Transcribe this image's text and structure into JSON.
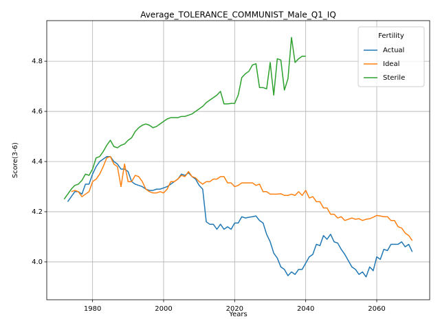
{
  "chart_data": {
    "type": "line",
    "title": "Average_TOLERANCE_COMMUNIST_Male_Q1_IQ",
    "xlabel": "Years",
    "ylabel": "Score(3-6)",
    "legend_title": "Fertility",
    "legend": "upper right",
    "grid": true,
    "x": [
      1972,
      1973,
      1974,
      1975,
      1976,
      1977,
      1978,
      1979,
      1980,
      1981,
      1982,
      1983,
      1984,
      1985,
      1986,
      1987,
      1988,
      1989,
      1990,
      1991,
      1992,
      1993,
      1994,
      1995,
      1996,
      1997,
      1998,
      1999,
      2000,
      2001,
      2002,
      2003,
      2004,
      2005,
      2006,
      2007,
      2008,
      2009,
      2010,
      2011,
      2012,
      2013,
      2014,
      2015,
      2016,
      2017,
      2018,
      2019,
      2020,
      2021,
      2022,
      2023,
      2024,
      2025,
      2026,
      2027,
      2028,
      2029,
      2030,
      2031,
      2032,
      2033,
      2034,
      2035,
      2036,
      2037,
      2038,
      2039,
      2040,
      2041,
      2042,
      2043,
      2044,
      2045,
      2046,
      2047,
      2048,
      2049,
      2050,
      2051,
      2052,
      2053,
      2054,
      2055,
      2056,
      2057,
      2058,
      2059,
      2060,
      2061,
      2062,
      2063,
      2064,
      2065,
      2066,
      2067,
      2068,
      2069,
      2070
    ],
    "series": [
      {
        "name": "Actual",
        "color": "#1f77b4",
        "values": [
          null,
          4.24,
          4.26,
          4.28,
          4.28,
          4.27,
          4.31,
          4.31,
          4.35,
          4.38,
          4.4,
          4.41,
          4.42,
          4.42,
          4.4,
          4.39,
          4.37,
          4.37,
          4.36,
          4.32,
          4.31,
          4.305,
          4.3,
          4.29,
          4.285,
          4.285,
          4.29,
          4.29,
          4.295,
          4.3,
          4.31,
          4.32,
          4.33,
          4.35,
          4.345,
          4.355,
          4.34,
          4.33,
          4.305,
          4.29,
          4.16,
          4.15,
          4.15,
          4.13,
          4.15,
          4.13,
          4.14,
          4.13,
          4.155,
          4.155,
          4.18,
          4.175,
          4.178,
          4.18,
          4.183,
          4.165,
          4.155,
          4.11,
          4.08,
          4.035,
          4.015,
          3.98,
          3.97,
          3.945,
          3.96,
          3.95,
          3.97,
          3.97,
          3.995,
          4.02,
          4.03,
          4.07,
          4.065,
          4.105,
          4.09,
          4.11,
          4.08,
          4.075,
          4.05,
          4.03,
          4.005,
          3.98,
          3.97,
          3.95,
          3.96,
          3.94,
          3.98,
          3.965,
          4.02,
          4.01,
          4.05,
          4.045,
          4.07,
          4.07,
          4.07,
          4.08,
          4.06,
          4.07,
          4.04
        ]
      },
      {
        "name": "Ideal",
        "color": "#ff7f0e",
        "values": [
          null,
          null,
          4.28,
          4.285,
          4.28,
          4.26,
          4.27,
          4.28,
          4.32,
          4.33,
          4.35,
          4.38,
          4.415,
          4.42,
          4.39,
          4.38,
          4.3,
          4.39,
          4.32,
          4.32,
          4.345,
          4.34,
          4.32,
          4.29,
          4.28,
          4.275,
          4.275,
          4.28,
          4.275,
          4.29,
          4.32,
          4.32,
          4.33,
          4.345,
          4.34,
          4.36,
          4.34,
          4.335,
          4.32,
          4.31,
          4.32,
          4.32,
          4.33,
          4.33,
          4.34,
          4.34,
          4.315,
          4.315,
          4.3,
          4.305,
          4.315,
          4.315,
          4.315,
          4.315,
          4.305,
          4.31,
          4.28,
          4.28,
          4.27,
          4.27,
          4.27,
          4.272,
          4.265,
          4.265,
          4.27,
          4.265,
          4.28,
          4.265,
          4.285,
          4.255,
          4.26,
          4.24,
          4.24,
          4.215,
          4.215,
          4.19,
          4.19,
          4.175,
          4.18,
          4.165,
          4.17,
          4.175,
          4.17,
          4.172,
          4.165,
          4.17,
          4.172,
          4.178,
          4.185,
          4.183,
          4.18,
          4.18,
          4.165,
          4.165,
          4.14,
          4.135,
          4.115,
          4.105,
          4.085
        ]
      },
      {
        "name": "Sterile",
        "color": "#2ca02c",
        "values": [
          4.25,
          4.27,
          4.29,
          4.305,
          4.31,
          4.325,
          4.35,
          4.345,
          4.37,
          4.415,
          4.42,
          4.44,
          4.465,
          4.485,
          4.46,
          4.455,
          4.465,
          4.47,
          4.485,
          4.495,
          4.52,
          4.535,
          4.545,
          4.55,
          4.545,
          4.535,
          4.54,
          4.55,
          4.56,
          4.57,
          4.575,
          4.575,
          4.575,
          4.58,
          4.58,
          4.585,
          4.59,
          4.6,
          4.61,
          4.62,
          4.635,
          4.645,
          4.655,
          4.665,
          4.68,
          4.63,
          4.63,
          4.632,
          4.632,
          4.665,
          4.735,
          4.75,
          4.76,
          4.785,
          4.79,
          4.695,
          4.695,
          4.69,
          4.795,
          4.665,
          4.81,
          4.805,
          4.685,
          4.73,
          4.895,
          4.795,
          4.81,
          4.82,
          4.82,
          null,
          null,
          null,
          null,
          null,
          null,
          null,
          null,
          null,
          null,
          null,
          null,
          null,
          null,
          null,
          null,
          null,
          null,
          null,
          null,
          null,
          null,
          null,
          null,
          null,
          null,
          null,
          null,
          null,
          null
        ]
      }
    ],
    "xlim": [
      1967.1,
      2074.9
    ],
    "xticks": [
      1980,
      2000,
      2020,
      2040,
      2060
    ],
    "ylim": [
      3.849,
      4.962
    ],
    "yticks": [
      {
        "value": 4,
        "label": "4.0"
      },
      4.2,
      4.4,
      4.6,
      4.8
    ]
  }
}
